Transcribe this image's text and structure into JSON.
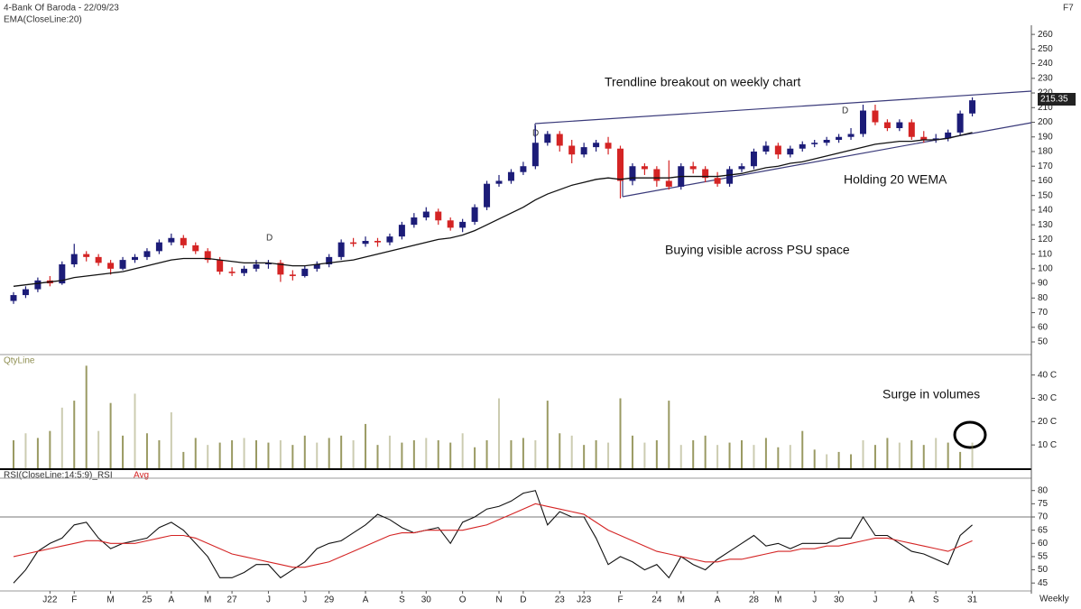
{
  "chart_data": [
    {
      "type": "candlestick",
      "title": "4-Bank Of Baroda - 22/09/23",
      "corner_label": "F7",
      "up_color": "#1c1c78",
      "down_color": "#d42424",
      "open": [
        78,
        82,
        86,
        92,
        90,
        103,
        110,
        108,
        104,
        100,
        106,
        108,
        112,
        118,
        121,
        116,
        112,
        106,
        98,
        97,
        100,
        103,
        104,
        96,
        95,
        100,
        103,
        108,
        118,
        117,
        119,
        118,
        122,
        130,
        135,
        139,
        133,
        128,
        132,
        142,
        158,
        160,
        166,
        170,
        186,
        192,
        184,
        178,
        183,
        186,
        182,
        160,
        170,
        168,
        160,
        156,
        170,
        168,
        162,
        158,
        168,
        170,
        180,
        184,
        178,
        182,
        185,
        186,
        188,
        190,
        192,
        208,
        200,
        196,
        200,
        190,
        188,
        189,
        193,
        206
      ],
      "high": [
        84,
        88,
        94,
        95,
        105,
        117,
        112,
        110,
        106,
        108,
        110,
        114,
        120,
        124,
        123,
        118,
        114,
        108,
        101,
        102,
        106,
        106,
        106,
        99,
        102,
        105,
        110,
        120,
        121,
        122,
        121,
        124,
        132,
        138,
        142,
        141,
        135,
        134,
        144,
        160,
        164,
        168,
        173,
        198,
        194,
        194,
        188,
        186,
        188,
        190,
        184,
        172,
        172,
        170,
        174,
        172,
        173,
        170,
        166,
        170,
        172,
        182,
        187,
        186,
        184,
        187,
        188,
        190,
        192,
        196,
        212,
        212,
        202,
        202,
        202,
        194,
        192,
        195,
        208,
        217
      ],
      "low": [
        76,
        80,
        84,
        88,
        89,
        101,
        105,
        102,
        96,
        99,
        104,
        106,
        110,
        116,
        114,
        110,
        104,
        96,
        95,
        95,
        98,
        100,
        91,
        92,
        94,
        98,
        101,
        106,
        115,
        115,
        115,
        116,
        120,
        128,
        133,
        130,
        126,
        125,
        130,
        140,
        156,
        158,
        164,
        168,
        184,
        180,
        172,
        176,
        180,
        178,
        148,
        157,
        164,
        156,
        154,
        154,
        165,
        159,
        156,
        156,
        166,
        168,
        178,
        175,
        176,
        180,
        183,
        184,
        186,
        188,
        190,
        198,
        194,
        194,
        188,
        186,
        186,
        187,
        191,
        204
      ],
      "close": [
        82,
        86,
        92,
        90,
        103,
        110,
        108,
        104,
        100,
        106,
        108,
        112,
        118,
        121,
        116,
        112,
        106,
        98,
        97,
        100,
        103,
        104,
        96,
        95,
        100,
        103,
        108,
        118,
        117,
        119,
        118,
        122,
        130,
        135,
        139,
        133,
        128,
        132,
        142,
        158,
        160,
        166,
        170,
        186,
        192,
        184,
        178,
        183,
        186,
        182,
        160,
        170,
        168,
        160,
        156,
        170,
        168,
        162,
        158,
        168,
        170,
        180,
        184,
        178,
        182,
        185,
        186,
        188,
        190,
        192,
        208,
        200,
        196,
        200,
        190,
        188,
        189,
        193,
        206,
        215
      ],
      "ema": {
        "name": "EMA(CloseLine:20)",
        "color": "#111111",
        "values": [
          88,
          89,
          90,
          91,
          92,
          94,
          95,
          96,
          97,
          98,
          100,
          102,
          104,
          106,
          107,
          107,
          107,
          106,
          105,
          104,
          104,
          104,
          103,
          102,
          102,
          103,
          104,
          105,
          106,
          108,
          110,
          112,
          114,
          116,
          118,
          120,
          121,
          123,
          126,
          130,
          134,
          138,
          142,
          147,
          151,
          154,
          157,
          159,
          161,
          162,
          161,
          162,
          162,
          162,
          162,
          163,
          163,
          163,
          163,
          164,
          165,
          167,
          169,
          170,
          172,
          173,
          175,
          177,
          179,
          181,
          183,
          185,
          186,
          187,
          187,
          188,
          188,
          189,
          191,
          193
        ]
      },
      "last_price_label": "215.35",
      "event_labels": [
        "D",
        "D",
        "D"
      ],
      "annotations": [
        "Trendline breakout on weekly chart",
        "Holding 20 WEMA",
        "Buying visible across PSU space"
      ],
      "ylim": [
        42,
        265
      ],
      "yticks": [
        50,
        60,
        70,
        80,
        90,
        100,
        110,
        120,
        130,
        140,
        150,
        160,
        170,
        180,
        190,
        200,
        210,
        220,
        230,
        240,
        250,
        260
      ]
    },
    {
      "type": "bar",
      "title": "QtyLine",
      "color": "#8f8f52",
      "values": [
        12,
        15,
        13,
        16,
        26,
        29,
        44,
        16,
        28,
        14,
        32,
        15,
        12,
        24,
        7,
        13,
        10,
        11,
        12,
        13,
        12,
        11,
        12,
        10,
        14,
        11,
        13,
        14,
        12,
        19,
        10,
        14,
        11,
        12,
        13,
        12,
        11,
        15,
        9,
        12,
        30,
        12,
        13,
        12,
        29,
        15,
        14,
        10,
        12,
        11,
        30,
        14,
        11,
        12,
        29,
        10,
        12,
        14,
        10,
        11,
        12,
        10,
        13,
        9,
        10,
        16,
        8,
        6,
        7,
        6,
        12,
        10,
        13,
        11,
        12,
        10,
        13,
        11,
        7,
        11
      ],
      "annotations": [
        "Surge in volumes"
      ],
      "ylim": [
        0,
        48
      ],
      "yticks": [
        {
          "value": 10,
          "label": "10 C"
        },
        {
          "value": 20,
          "label": "20 C"
        },
        {
          "value": 30,
          "label": "30 C"
        },
        {
          "value": 40,
          "label": "40 C"
        }
      ]
    },
    {
      "type": "line",
      "series": [
        {
          "name": "RSI(CloseLine:14:5:9)_RSI",
          "color": "#111111",
          "values": [
            45,
            50,
            57,
            60,
            62,
            67,
            68,
            62,
            58,
            60,
            61,
            62,
            66,
            68,
            65,
            60,
            55,
            47,
            47,
            49,
            52,
            52,
            47,
            50,
            53,
            58,
            60,
            61,
            64,
            67,
            71,
            69,
            66,
            64,
            65,
            66,
            60,
            68,
            70,
            73,
            74,
            76,
            79,
            80,
            67,
            72,
            70,
            70,
            62,
            52,
            55,
            53,
            50,
            52,
            47,
            55,
            52,
            50,
            54,
            57,
            60,
            63,
            59,
            60,
            58,
            60,
            60,
            60,
            62,
            62,
            70,
            63,
            63,
            60,
            57,
            56,
            54,
            52,
            63,
            67
          ]
        },
        {
          "name": "Avg",
          "color": "#d42424",
          "values": [
            55,
            56,
            57,
            58,
            59,
            60,
            61,
            61,
            60,
            60,
            60,
            61,
            62,
            63,
            63,
            62,
            60,
            58,
            56,
            55,
            54,
            53,
            52,
            51,
            51,
            52,
            53,
            55,
            57,
            59,
            61,
            63,
            64,
            64,
            65,
            65,
            65,
            65,
            66,
            67,
            69,
            71,
            73,
            75,
            74,
            73,
            72,
            71,
            68,
            65,
            63,
            61,
            59,
            57,
            56,
            55,
            54,
            53,
            53,
            54,
            54,
            55,
            56,
            57,
            57,
            58,
            58,
            59,
            59,
            60,
            61,
            62,
            62,
            61,
            60,
            59,
            58,
            57,
            59,
            61
          ]
        }
      ],
      "ref_line": 70,
      "categories": [
        null,
        null,
        null,
        "J22",
        null,
        "F",
        null,
        null,
        "M",
        null,
        null,
        "25",
        null,
        "A",
        null,
        null,
        "M",
        null,
        "27",
        null,
        null,
        "J",
        null,
        null,
        "J",
        null,
        "29",
        null,
        null,
        "A",
        null,
        null,
        "S",
        null,
        "30",
        null,
        null,
        "O",
        null,
        null,
        "N",
        null,
        "D",
        null,
        null,
        "23",
        null,
        "J23",
        null,
        null,
        "F",
        null,
        null,
        "24",
        null,
        "M",
        null,
        null,
        "A",
        null,
        null,
        "28",
        null,
        "M",
        null,
        null,
        "J",
        null,
        "30",
        null,
        null,
        "J",
        null,
        null,
        "A",
        null,
        "S",
        null,
        null,
        "31"
      ],
      "x_axis_label": "Weekly",
      "ylim": [
        42,
        84
      ],
      "yticks": [
        45,
        50,
        55,
        60,
        65,
        70,
        75,
        80
      ]
    }
  ]
}
